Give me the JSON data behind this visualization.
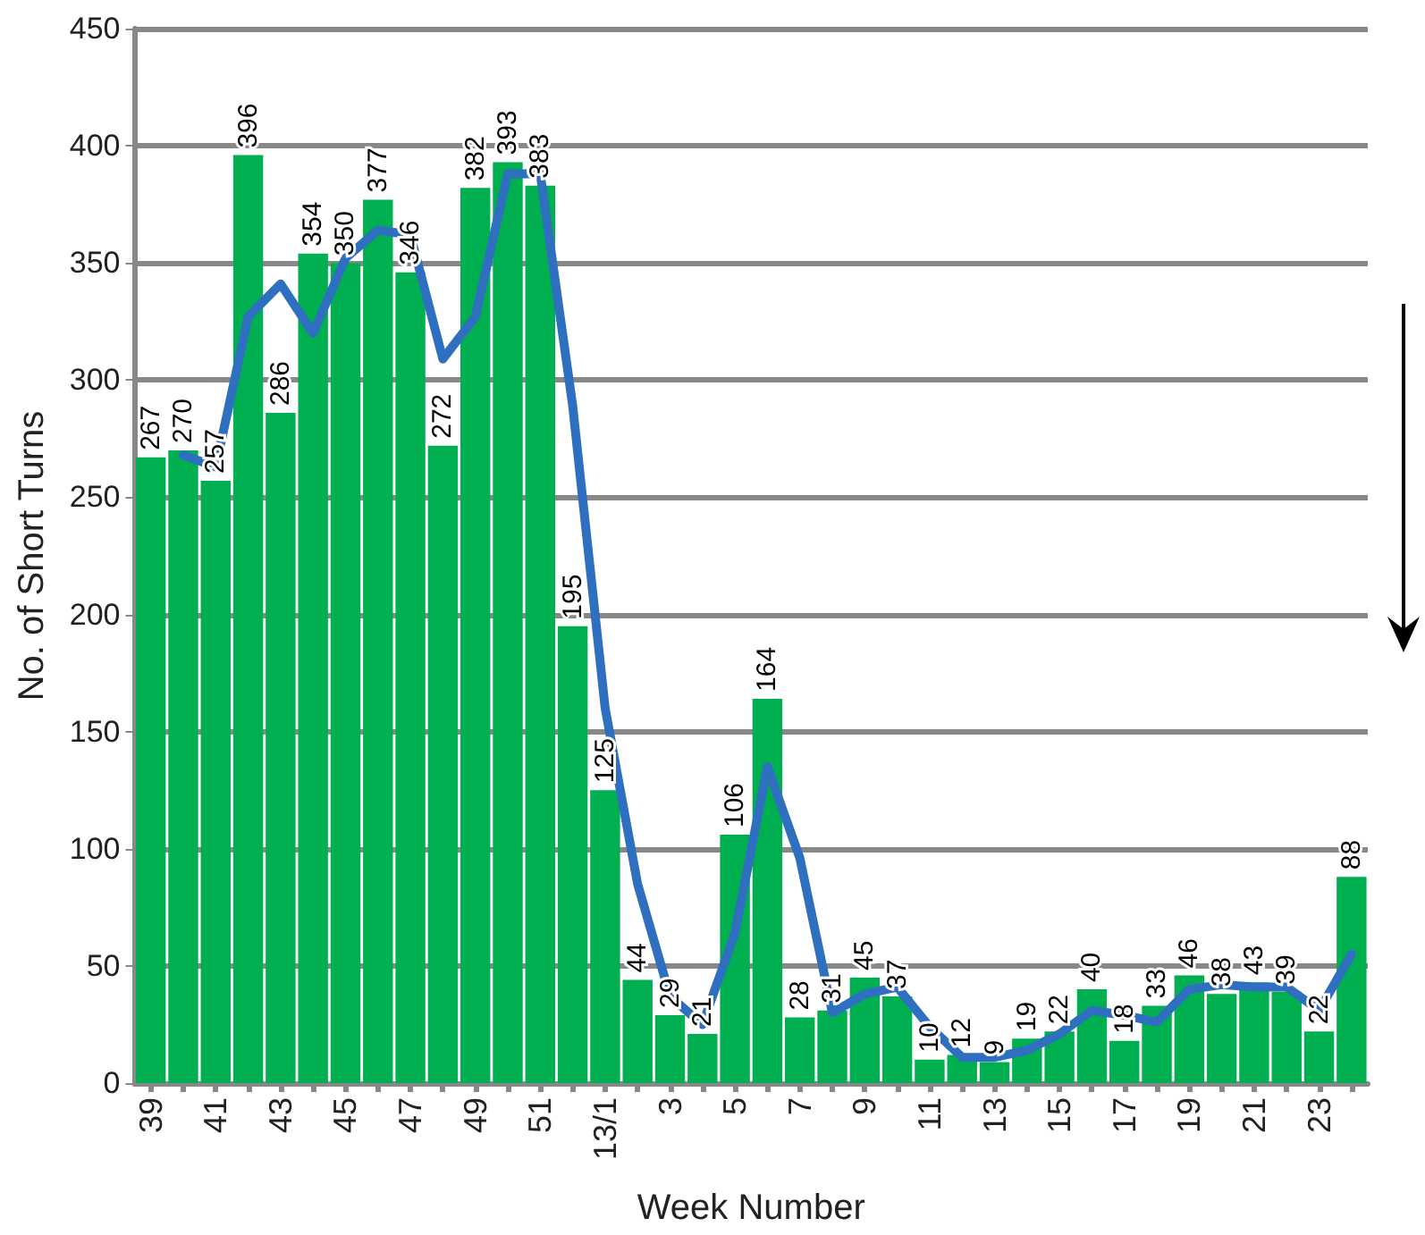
{
  "chart_data": {
    "type": "bar",
    "xlabel": "Week Number",
    "ylabel": "No. of Short Turns",
    "categories": [
      "39",
      null,
      "41",
      null,
      "43",
      null,
      "45",
      null,
      "47",
      null,
      "49",
      null,
      "51",
      null,
      "13/1",
      null,
      "3",
      null,
      "5",
      null,
      "7",
      null,
      "9",
      null,
      "11",
      null,
      "13",
      null,
      "15",
      null,
      "17",
      null,
      "19",
      null,
      "21",
      null,
      "23",
      null
    ],
    "series": [
      {
        "color": "#00b050",
        "values": [
          267,
          270,
          257,
          396,
          286,
          354,
          350,
          377,
          346,
          272,
          382,
          393,
          383,
          195,
          125,
          44,
          29,
          21,
          106,
          164,
          28,
          31,
          45,
          37,
          10,
          12,
          9,
          19,
          22,
          40,
          18,
          33,
          46,
          38,
          43,
          39,
          22,
          88
        ],
        "data_labels": true
      },
      {
        "type": "line",
        "color": "#2e6fc0",
        "values": [
          null,
          268,
          263,
          327,
          341,
          320,
          352,
          364,
          362,
          309,
          327,
          388,
          388,
          289,
          160,
          85,
          37,
          25,
          64,
          135,
          96,
          30,
          38,
          41,
          24,
          11,
          11,
          14,
          21,
          31,
          29,
          26,
          40,
          42,
          41,
          41,
          31,
          55
        ],
        "marker": "none",
        "line_style": "solid"
      }
    ],
    "ylim": [
      0,
      450
    ],
    "yticks": [
      0,
      50,
      100,
      150,
      200,
      250,
      300,
      350,
      400,
      450
    ],
    "grid": "y"
  }
}
